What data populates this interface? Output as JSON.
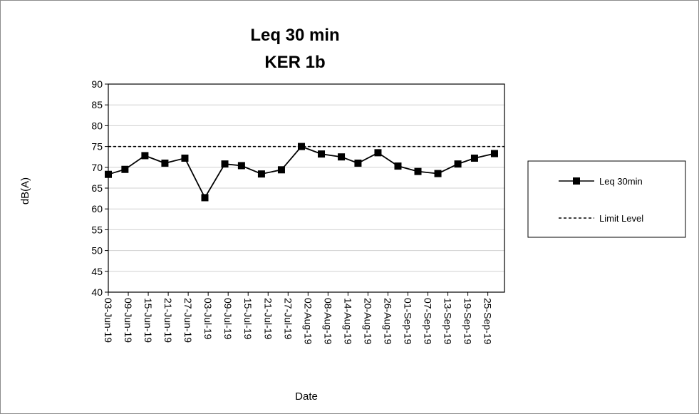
{
  "chart_data": {
    "type": "line",
    "title": "Leq 30 min",
    "subtitle": "KER 1b",
    "xlabel": "Date",
    "ylabel": "dB(A)",
    "ylim": [
      40,
      90
    ],
    "ystep": 5,
    "yticks": [
      "40",
      "45",
      "50",
      "55",
      "60",
      "65",
      "70",
      "75",
      "80",
      "85",
      "90"
    ],
    "xlim": [
      "2019-06-03",
      "2019-09-30"
    ],
    "xticks": [
      {
        "date": "2019-06-03",
        "label": "03-Jun-19"
      },
      {
        "date": "2019-06-09",
        "label": "09-Jun-19"
      },
      {
        "date": "2019-06-15",
        "label": "15-Jun-19"
      },
      {
        "date": "2019-06-21",
        "label": "21-Jun-19"
      },
      {
        "date": "2019-06-27",
        "label": "27-Jun-19"
      },
      {
        "date": "2019-07-03",
        "label": "03-Jul-19"
      },
      {
        "date": "2019-07-09",
        "label": "09-Jul-19"
      },
      {
        "date": "2019-07-15",
        "label": "15-Jul-19"
      },
      {
        "date": "2019-07-21",
        "label": "21-Jul-19"
      },
      {
        "date": "2019-07-27",
        "label": "27-Jul-19"
      },
      {
        "date": "2019-08-02",
        "label": "02-Aug-19"
      },
      {
        "date": "2019-08-08",
        "label": "08-Aug-19"
      },
      {
        "date": "2019-08-14",
        "label": "14-Aug-19"
      },
      {
        "date": "2019-08-20",
        "label": "20-Aug-19"
      },
      {
        "date": "2019-08-26",
        "label": "26-Aug-19"
      },
      {
        "date": "2019-09-01",
        "label": "01-Sep-19"
      },
      {
        "date": "2019-09-07",
        "label": "07-Sep-19"
      },
      {
        "date": "2019-09-13",
        "label": "13-Sep-19"
      },
      {
        "date": "2019-09-19",
        "label": "19-Sep-19"
      },
      {
        "date": "2019-09-25",
        "label": "25-Sep-19"
      }
    ],
    "grid": true,
    "legend": "right",
    "series": [
      {
        "name": "Leq 30min",
        "color": "#000000",
        "marker": "square",
        "points": [
          {
            "x": "2019-06-03",
            "y": 68.3
          },
          {
            "x": "2019-06-08",
            "y": 69.5
          },
          {
            "x": "2019-06-14",
            "y": 72.8
          },
          {
            "x": "2019-06-20",
            "y": 71.0
          },
          {
            "x": "2019-06-26",
            "y": 72.2
          },
          {
            "x": "2019-07-02",
            "y": 62.7
          },
          {
            "x": "2019-07-08",
            "y": 70.8
          },
          {
            "x": "2019-07-13",
            "y": 70.4
          },
          {
            "x": "2019-07-19",
            "y": 68.4
          },
          {
            "x": "2019-07-25",
            "y": 69.4
          },
          {
            "x": "2019-07-31",
            "y": 75.0
          },
          {
            "x": "2019-08-06",
            "y": 73.2
          },
          {
            "x": "2019-08-12",
            "y": 72.5
          },
          {
            "x": "2019-08-17",
            "y": 71.0
          },
          {
            "x": "2019-08-23",
            "y": 73.5
          },
          {
            "x": "2019-08-29",
            "y": 70.3
          },
          {
            "x": "2019-09-04",
            "y": 69.0
          },
          {
            "x": "2019-09-10",
            "y": 68.5
          },
          {
            "x": "2019-09-16",
            "y": 70.8
          },
          {
            "x": "2019-09-21",
            "y": 72.2
          },
          {
            "x": "2019-09-27",
            "y": 73.3
          }
        ]
      },
      {
        "name": "Limit Level",
        "color": "#000000",
        "dash": "dashed",
        "value": 75
      }
    ]
  }
}
